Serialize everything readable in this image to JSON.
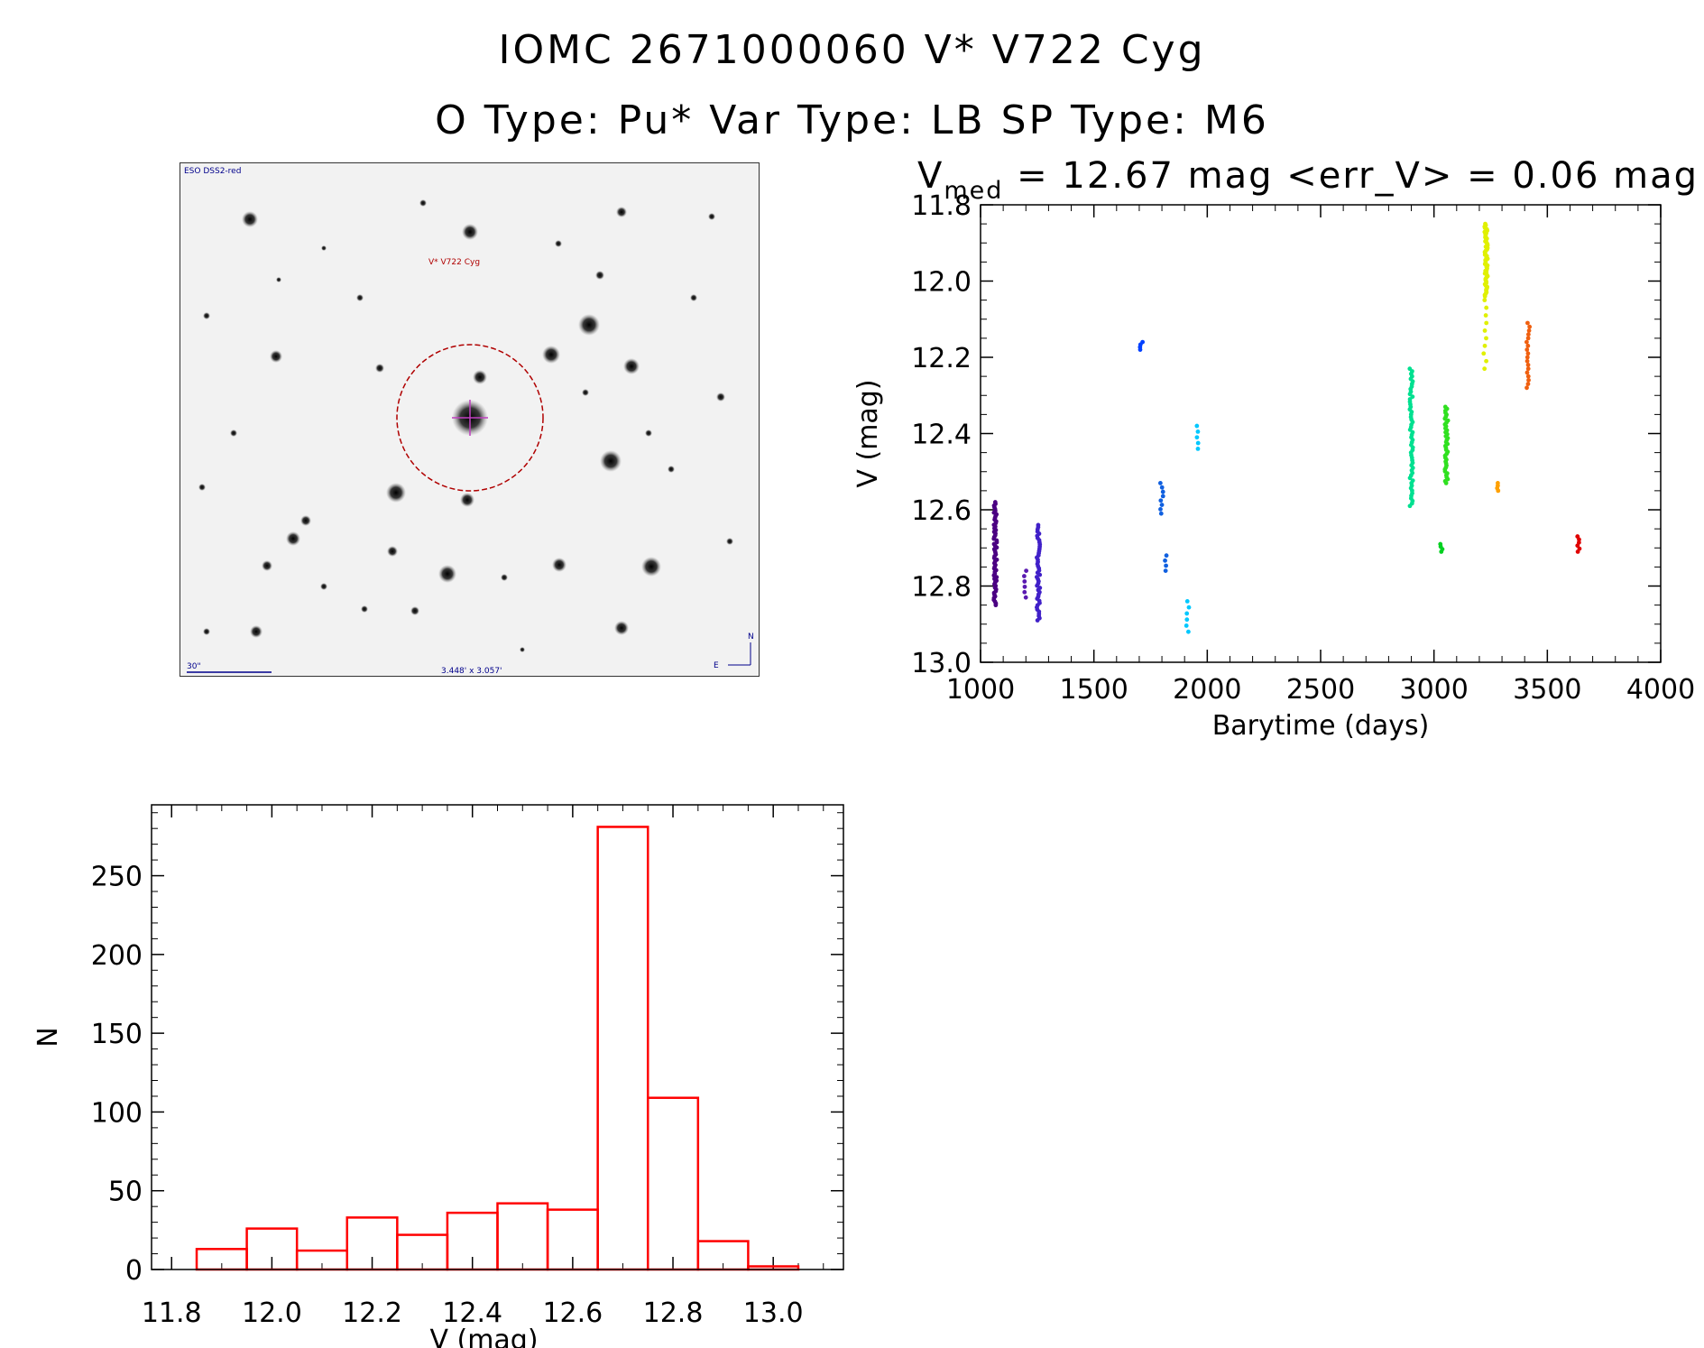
{
  "header": {
    "line1": "IOMC 2671000060    V* V722 Cyg",
    "line2": "O Type: Pu*  Var Type: LB  SP Type: M6"
  },
  "finder": {
    "survey_label": "ESO DSS2-red",
    "target_label": "V* V722 Cyg",
    "scale_label": "30\"",
    "fov_label": "3.448' x 3.057'",
    "north_label": "N",
    "east_label": "E"
  },
  "chart_data": [
    {
      "type": "scatter",
      "title_main": "V",
      "title_sub": "med",
      "title_rest": " = 12.67 mag <err_V> = 0.06 mag",
      "xlabel": "Barytime (days)",
      "ylabel": "V (mag)",
      "xlim": [
        1000,
        4000
      ],
      "ylim": [
        13.0,
        11.8
      ],
      "y_inverted": true,
      "xticks": [
        "1000",
        "1500",
        "2000",
        "2500",
        "3000",
        "3500",
        "4000"
      ],
      "yticks": [
        "11.8",
        "12.0",
        "12.2",
        "12.4",
        "12.6",
        "12.8",
        "13.0"
      ],
      "groups": [
        {
          "x": 1065,
          "y_range": [
            12.58,
            12.85
          ],
          "n": 60,
          "color": "#4b0082"
        },
        {
          "x": 1195,
          "y_range": [
            12.76,
            12.83
          ],
          "n": 6,
          "color": "#5a1ab0"
        },
        {
          "x": 1255,
          "y_range": [
            12.64,
            12.89
          ],
          "n": 45,
          "color": "#4020c8"
        },
        {
          "x": 1710,
          "y_range": [
            12.16,
            12.18
          ],
          "n": 4,
          "color": "#0040ff"
        },
        {
          "x": 1800,
          "y_range": [
            12.53,
            12.61
          ],
          "n": 8,
          "color": "#1060e0"
        },
        {
          "x": 1820,
          "y_range": [
            12.72,
            12.76
          ],
          "n": 4,
          "color": "#1060e0"
        },
        {
          "x": 1915,
          "y_range": [
            12.84,
            12.92
          ],
          "n": 6,
          "color": "#00c8ff"
        },
        {
          "x": 1960,
          "y_range": [
            12.38,
            12.44
          ],
          "n": 5,
          "color": "#00c8ff"
        },
        {
          "x": 2900,
          "y_range": [
            12.23,
            12.59
          ],
          "n": 55,
          "color": "#00e090"
        },
        {
          "x": 3030,
          "y_range": [
            12.69,
            12.71
          ],
          "n": 4,
          "color": "#00d020"
        },
        {
          "x": 3055,
          "y_range": [
            12.33,
            12.53
          ],
          "n": 40,
          "color": "#30e020"
        },
        {
          "x": 3230,
          "y_range": [
            11.85,
            12.04
          ],
          "n": 55,
          "color": "#e0f000"
        },
        {
          "x": 3225,
          "y_range": [
            12.05,
            12.23
          ],
          "n": 10,
          "color": "#e0f000"
        },
        {
          "x": 3285,
          "y_range": [
            12.53,
            12.55
          ],
          "n": 4,
          "color": "#ffa000"
        },
        {
          "x": 3415,
          "y_range": [
            12.11,
            12.28
          ],
          "n": 18,
          "color": "#f06010"
        },
        {
          "x": 3640,
          "y_range": [
            12.67,
            12.71
          ],
          "n": 6,
          "color": "#e00000"
        }
      ]
    },
    {
      "type": "bar",
      "histogram": true,
      "xlabel": "V (mag)",
      "ylabel": "N",
      "xlim": [
        11.76,
        13.14
      ],
      "ylim": [
        0,
        295
      ],
      "xticks": [
        "11.8",
        "12.0",
        "12.2",
        "12.4",
        "12.6",
        "12.8",
        "13.0"
      ],
      "yticks": [
        "0",
        "50",
        "100",
        "150",
        "200",
        "250"
      ],
      "bin_edges": [
        11.85,
        11.95,
        12.05,
        12.15,
        12.25,
        12.35,
        12.45,
        12.55,
        12.65,
        12.75,
        12.85,
        12.95,
        13.05
      ],
      "values": [
        13,
        26,
        12,
        33,
        22,
        36,
        42,
        38,
        281,
        109,
        18,
        2
      ],
      "color": "#ff0000"
    }
  ]
}
